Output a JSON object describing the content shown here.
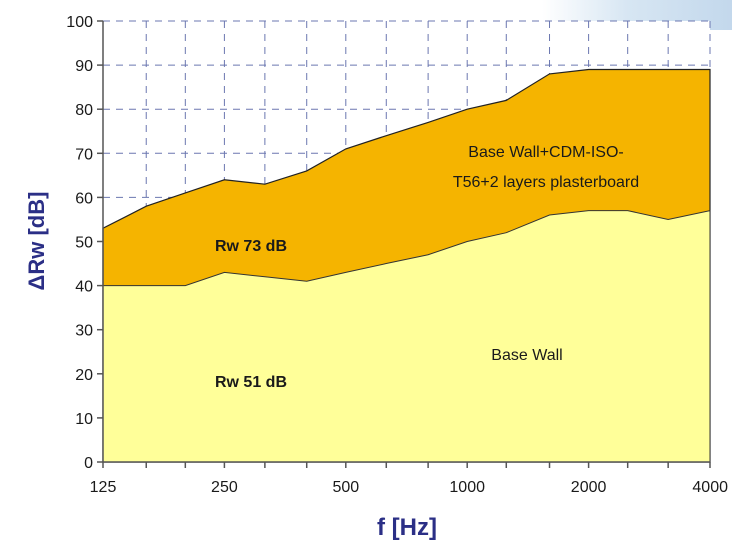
{
  "chart_data": {
    "type": "area",
    "xlabel": "f [Hz]",
    "ylabel": "ΔRw [dB]",
    "x_tick_labels": [
      "125",
      "250",
      "500",
      "1000",
      "2000",
      "4000"
    ],
    "y_tick_labels": [
      "0",
      "10",
      "20",
      "30",
      "40",
      "50",
      "60",
      "70",
      "80",
      "90",
      "100"
    ],
    "xlim": [
      125,
      4000
    ],
    "ylim": [
      0,
      100
    ],
    "x_scale": "log",
    "grid": true,
    "frequencies": [
      125,
      160,
      200,
      250,
      315,
      400,
      500,
      630,
      800,
      1000,
      1250,
      1600,
      2000,
      2500,
      3150,
      4000
    ],
    "series": [
      {
        "name": "Base Wall+CDM-ISO-T56+2 layers plasterboard",
        "values": [
          53,
          58,
          61,
          64,
          63,
          66,
          71,
          74,
          77,
          80,
          82,
          88,
          89,
          89,
          89,
          89
        ],
        "color": "#f5b400"
      },
      {
        "name": "Base Wall",
        "values": [
          40,
          40,
          40,
          43,
          42,
          41,
          43,
          45,
          47,
          50,
          52,
          56,
          57,
          57,
          55,
          57
        ],
        "color": "#ffff99"
      }
    ],
    "annotations": {
      "upper_label_line1": "Base Wall+CDM-ISO-",
      "upper_label_line2": "T56+2 layers plasterboard",
      "upper_rating": "Rw 73 dB",
      "lower_label": "Base Wall",
      "lower_rating": "Rw 51 dB"
    }
  }
}
